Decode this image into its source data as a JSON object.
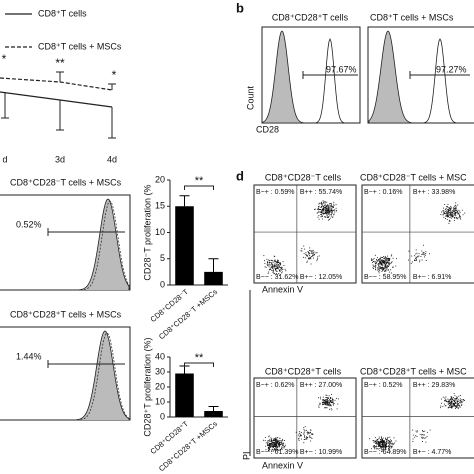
{
  "panel_a": {
    "legend": [
      "CD8⁺T cells",
      "CD8⁺T cells + MSCs"
    ],
    "stars": [
      "*",
      "**",
      "*"
    ],
    "x_labels": [
      "d",
      "3d",
      "4d"
    ]
  },
  "panel_b": {
    "label": "b",
    "titles": [
      "CD8⁺CD28⁺T cells",
      "CD8⁺T cells + MSCs"
    ],
    "y_label": "Count",
    "x_label": "CD28",
    "gates": [
      "97.67%",
      "97.27%"
    ]
  },
  "panel_c": {
    "titles": [
      "CD8⁺CD28⁻T cells + MSCs",
      "CD8⁺CD28⁺T cells + MSCs"
    ],
    "gates": [
      "0.52%",
      "1.44%"
    ]
  },
  "chart_data": [
    {
      "type": "bar",
      "y_label": "CD28⁻T proliferation (%",
      "categories": [
        "CD8⁺CD28⁻T",
        "CD8⁺CD28⁻T +MSCs"
      ],
      "values": [
        15,
        2.5
      ],
      "errors": [
        2,
        2.5
      ],
      "color": "#000000",
      "ylim": [
        0,
        20
      ],
      "yticks": [
        0,
        5,
        10,
        15,
        20
      ],
      "annotation": "**"
    },
    {
      "type": "bar",
      "y_label": "CD28⁺T proliferation (%)",
      "categories": [
        "CD8⁺CD28⁺T",
        "CD8⁺CD28⁺T +MSCs"
      ],
      "values": [
        29,
        4
      ],
      "errors": [
        5,
        3
      ],
      "color": "#000000",
      "ylim": [
        0,
        40
      ],
      "yticks": [
        0,
        10,
        20,
        30,
        40
      ],
      "annotation": "**"
    }
  ],
  "panel_d": {
    "label": "d",
    "titles": [
      "CD8⁺CD28⁻T cells",
      "CD8⁺CD28⁻T cells + MSC",
      "CD8⁺CD28⁺T cells",
      "CD8⁺CD28⁺T cells + MSC"
    ],
    "x_label": "Annexin V",
    "y_label": "PI",
    "plots": [
      [
        "B−+ : 0.59%",
        "B++ : 55.74%",
        "B−− : 31.62%",
        "B+− : 12.05%"
      ],
      [
        "B−+ : 0.16%",
        "B++ : 33.98%",
        "B−− : 58.95%",
        "B+− : 6.91%"
      ],
      [
        "B−+ : 0.62%",
        "B++ : 27.00%",
        "B−− : 61.39%",
        "B+− : 10.99%"
      ],
      [
        "B−+ : 0.52%",
        "B++ : 29.83%",
        "B−− : 64.89%",
        "B+− : 4.77%"
      ]
    ]
  }
}
